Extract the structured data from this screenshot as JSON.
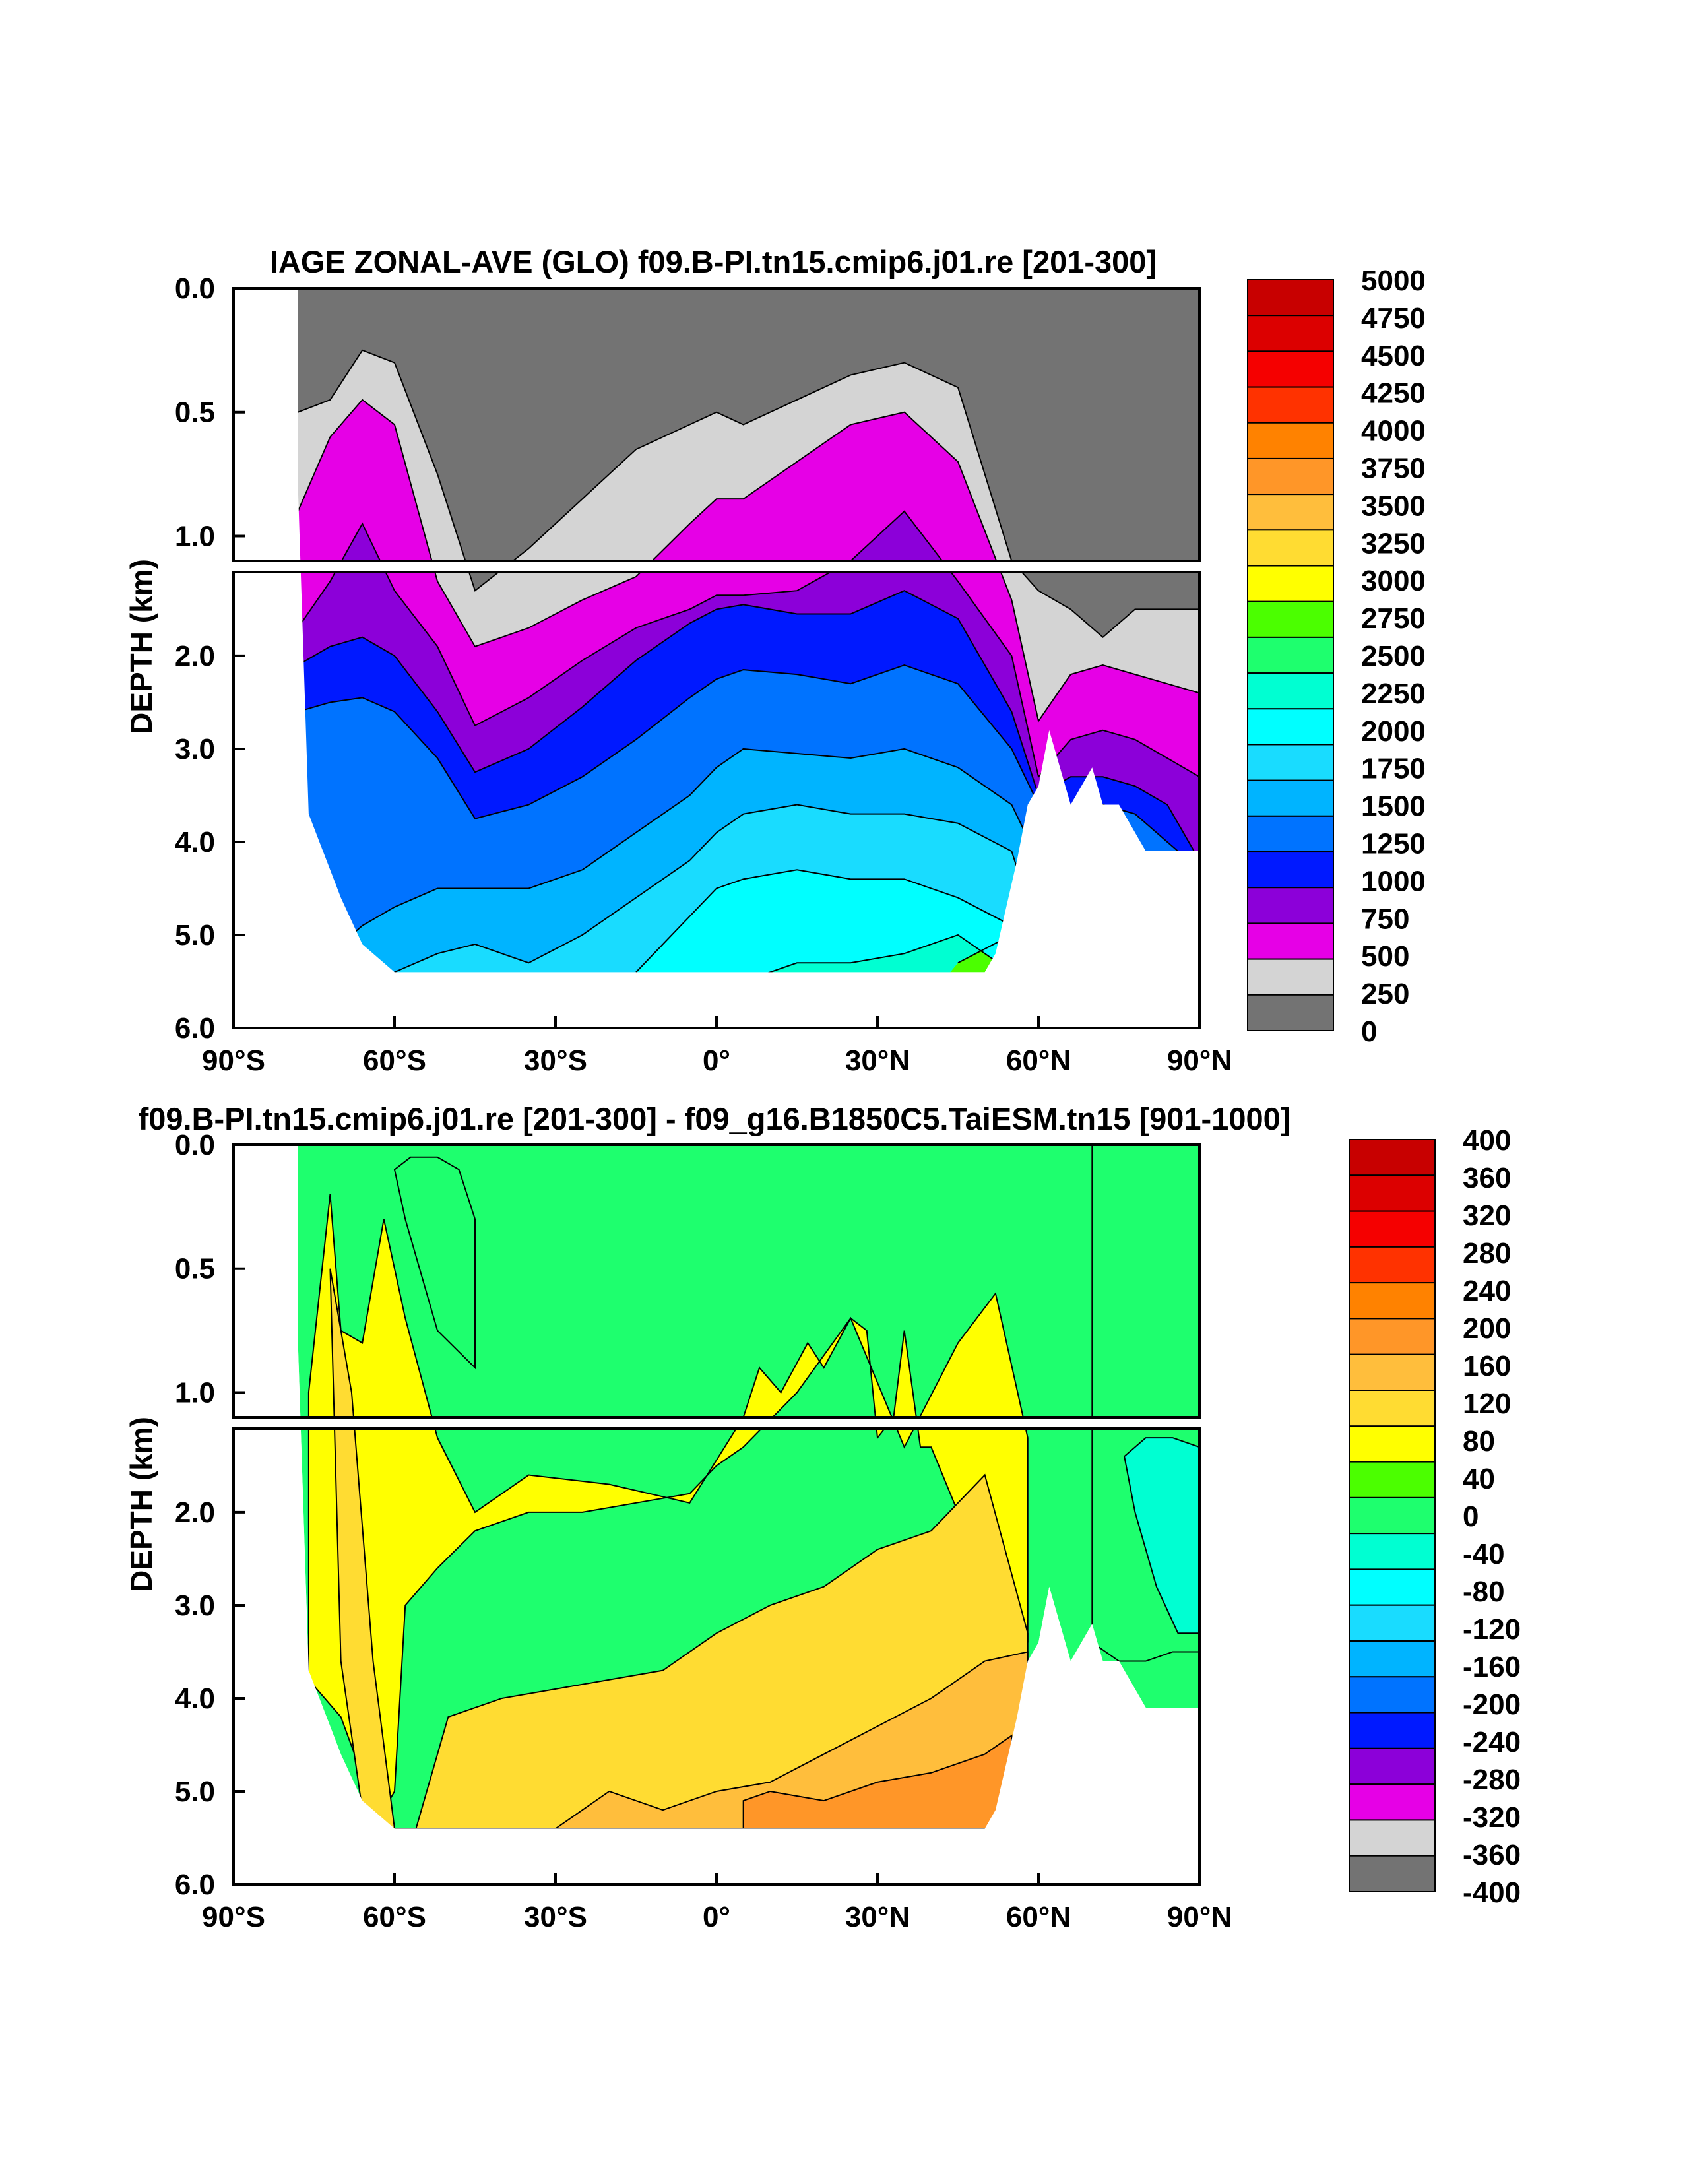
{
  "chart_data": [
    {
      "type": "heatmap",
      "subtype": "filled-contour depth-latitude section",
      "title": "IAGE ZONAL-AVE (GLO) f09.B-PI.tn15.cmip6.j01.re [201-300]",
      "xlabel": "",
      "ylabel": "DEPTH (km)",
      "x_ticks": [
        "90°S",
        "60°S",
        "30°S",
        "0°",
        "30°N",
        "60°N",
        "90°N"
      ],
      "y_ticks": [
        "0.0",
        "0.5",
        "1.0",
        "2.0",
        "3.0",
        "4.0",
        "5.0",
        "6.0"
      ],
      "xlim": [
        -90,
        90
      ],
      "ylim_upper_km": [
        0,
        1.1
      ],
      "ylim_lower_km": [
        1.1,
        6.0
      ],
      "colorbar": {
        "labels": [
          "0",
          "250",
          "500",
          "750",
          "1000",
          "1250",
          "1500",
          "1750",
          "2000",
          "2250",
          "2500",
          "2750",
          "3000",
          "3250",
          "3500",
          "3750",
          "4000",
          "4250",
          "4500",
          "4750",
          "5000"
        ],
        "colors": [
          "#737373",
          "#d4d4d4",
          "#e600e6",
          "#8c00d9",
          "#0019ff",
          "#0073ff",
          "#00b4ff",
          "#19dcff",
          "#00ffff",
          "#00ffd2",
          "#1eff6e",
          "#4bff00",
          "#ffff00",
          "#ffdc32",
          "#ffbe3c",
          "#ff9628",
          "#ff8200",
          "#ff3200",
          "#f50000",
          "#dc0000",
          "#c80000"
        ]
      },
      "bathymetry_depth_km": {
        "lat": [
          -78,
          -76,
          -74,
          -72,
          -70,
          -66,
          -60,
          -56,
          -52,
          -45,
          -30,
          -10,
          0,
          10,
          20,
          30,
          40,
          50,
          52,
          56,
          58,
          60,
          62,
          64,
          66,
          70,
          72,
          75,
          80,
          85,
          90
        ],
        "depth": [
          0.8,
          3.7,
          4.0,
          4.3,
          4.6,
          5.1,
          5.4,
          5.4,
          5.4,
          5.4,
          5.4,
          5.4,
          5.4,
          5.4,
          5.4,
          5.4,
          5.4,
          5.4,
          5.2,
          4.2,
          3.6,
          3.4,
          2.8,
          3.2,
          3.6,
          3.2,
          3.6,
          3.6,
          4.1,
          4.1,
          4.1
        ]
      },
      "contours": [
        {
          "level": 250,
          "depth": [
            0.5,
            0.45,
            0.25,
            0.3,
            0.75,
            1.3,
            1.05,
            0.85,
            0.65,
            0.55,
            0.5,
            0.55,
            0.45,
            0.35,
            0.3,
            0.4,
            1.1,
            1.3,
            1.5,
            1.8,
            1.5,
            1.5,
            1.5
          ]
        },
        {
          "level": 500,
          "depth": [
            0.9,
            0.6,
            0.45,
            0.55,
            1.2,
            1.9,
            1.7,
            1.4,
            1.15,
            0.95,
            0.85,
            0.85,
            0.7,
            0.55,
            0.5,
            0.7,
            1.4,
            2.7,
            2.2,
            2.1,
            2.2,
            2.3,
            2.4
          ]
        },
        {
          "level": 750,
          "depth": [
            1.7,
            1.2,
            0.95,
            1.3,
            1.9,
            2.75,
            2.45,
            2.05,
            1.7,
            1.5,
            1.35,
            1.35,
            1.3,
            1.1,
            0.9,
            1.2,
            2.0,
            3.3,
            2.9,
            2.8,
            2.9,
            3.1,
            3.3
          ]
        },
        {
          "level": 1000,
          "depth": [
            2.1,
            1.9,
            1.8,
            2.0,
            2.6,
            3.25,
            3.0,
            2.55,
            2.05,
            1.65,
            1.5,
            1.45,
            1.55,
            1.55,
            1.3,
            1.6,
            2.6,
            3.5,
            3.3,
            3.3,
            3.4,
            3.6,
            4.2
          ]
        },
        {
          "level": 1250,
          "depth": [
            2.6,
            2.5,
            2.45,
            2.6,
            3.1,
            3.75,
            3.6,
            3.3,
            2.9,
            2.45,
            2.25,
            2.15,
            2.2,
            2.3,
            2.1,
            2.3,
            3.0,
            3.6,
            3.6,
            3.6,
            3.7,
            4.0,
            4.3
          ]
        },
        {
          "level": 1500,
          "depth": [
            5.3,
            5.2,
            4.9,
            4.7,
            4.5,
            4.5,
            4.5,
            4.3,
            3.9,
            3.5,
            3.2,
            3.0,
            3.05,
            3.1,
            3.0,
            3.2,
            3.6,
            4.2,
            4.5,
            4.5,
            4.5,
            4.5,
            4.5
          ]
        },
        {
          "level": 1750,
          "depth": [
            6.0,
            6.0,
            5.6,
            5.4,
            5.2,
            5.1,
            5.3,
            5.0,
            4.6,
            4.2,
            3.9,
            3.7,
            3.6,
            3.7,
            3.7,
            3.8,
            4.1,
            5.0,
            6.0,
            6.0,
            6.0,
            6.0,
            6.0
          ]
        },
        {
          "level": 2000,
          "depth": [
            6.0,
            6.0,
            6.0,
            6.0,
            6.0,
            6.0,
            6.0,
            6.0,
            5.4,
            4.8,
            4.5,
            4.4,
            4.3,
            4.4,
            4.4,
            4.6,
            4.9,
            6.0,
            6.0,
            6.0,
            6.0,
            6.0,
            6.0
          ]
        },
        {
          "level": 2250,
          "depth": [
            6.0,
            6.0,
            6.0,
            6.0,
            6.0,
            6.0,
            6.0,
            6.0,
            6.0,
            6.0,
            5.6,
            5.5,
            5.3,
            5.3,
            5.2,
            5.0,
            5.4,
            6.0,
            6.0,
            6.0,
            6.0,
            6.0,
            6.0
          ]
        },
        {
          "level": 2500,
          "depth": [
            6.0,
            6.0,
            6.0,
            6.0,
            6.0,
            6.0,
            6.0,
            6.0,
            6.0,
            6.0,
            6.0,
            6.0,
            6.0,
            6.0,
            6.0,
            5.3,
            5.0,
            6.0,
            6.0,
            6.0,
            6.0,
            6.0,
            6.0
          ]
        }
      ],
      "contour_lat": [
        -78,
        -72,
        -66,
        -60,
        -52,
        -45,
        -35,
        -25,
        -15,
        -5,
        0,
        5,
        15,
        25,
        35,
        45,
        55,
        60,
        66,
        72,
        78,
        84,
        90
      ]
    },
    {
      "type": "heatmap",
      "subtype": "filled-contour depth-latitude section (difference)",
      "title": "f09.B-PI.tn15.cmip6.j01.re [201-300] - f09_g16.B1850C5.TaiESM.tn15 [901-1000]",
      "xlabel": "",
      "ylabel": "DEPTH (km)",
      "x_ticks": [
        "90°S",
        "60°S",
        "30°S",
        "0°",
        "30°N",
        "60°N",
        "90°N"
      ],
      "y_ticks": [
        "0.0",
        "0.5",
        "1.0",
        "2.0",
        "3.0",
        "4.0",
        "5.0",
        "6.0"
      ],
      "xlim": [
        -90,
        90
      ],
      "ylim_upper_km": [
        0,
        1.1
      ],
      "ylim_lower_km": [
        1.1,
        6.0
      ],
      "colorbar": {
        "labels": [
          "400",
          "360",
          "320",
          "280",
          "240",
          "200",
          "160",
          "120",
          "80",
          "40",
          "0",
          "-40",
          "-80",
          "-120",
          "-160",
          "-200",
          "-240",
          "-280",
          "-320",
          "-360",
          "-400"
        ],
        "colors": [
          "#c80000",
          "#dc0000",
          "#f50000",
          "#ff3200",
          "#ff8200",
          "#ff9628",
          "#ffbe3c",
          "#ffdc32",
          "#ffff00",
          "#4bff00",
          "#1eff6e",
          "#00ffd2",
          "#00ffff",
          "#19dcff",
          "#00b4ff",
          "#0073ff",
          "#0019ff",
          "#8c00d9",
          "#e600e6",
          "#d4d4d4",
          "#737373"
        ]
      },
      "bathymetry_depth_km": {
        "lat": [
          -78,
          -76,
          -74,
          -72,
          -70,
          -66,
          -60,
          -56,
          -52,
          -45,
          -30,
          -10,
          0,
          10,
          20,
          30,
          40,
          50,
          52,
          56,
          58,
          60,
          62,
          64,
          66,
          70,
          72,
          75,
          80,
          85,
          90
        ],
        "depth": [
          0.8,
          3.7,
          4.0,
          4.3,
          4.6,
          5.1,
          5.4,
          5.4,
          5.4,
          5.4,
          5.4,
          5.4,
          5.4,
          5.4,
          5.4,
          5.4,
          5.4,
          5.4,
          5.2,
          4.2,
          3.6,
          3.4,
          2.8,
          3.2,
          3.6,
          3.2,
          3.6,
          3.6,
          4.1,
          4.1,
          4.1
        ]
      },
      "regions": [
        {
          "value_range": [
            -40,
            0
          ],
          "lat": [
            -60,
            -57,
            -52,
            -48,
            -45,
            -45,
            -52,
            -58,
            -60
          ],
          "depth": [
            0.1,
            0.05,
            0.05,
            0.1,
            0.3,
            0.9,
            0.75,
            0.3,
            0.1
          ]
        },
        {
          "value_range": [
            -40,
            0
          ],
          "lat": [
            70,
            75,
            80,
            85,
            90,
            90,
            85,
            80,
            75,
            70,
            70
          ],
          "depth": [
            0.0,
            0.0,
            0.0,
            0.0,
            0.0,
            3.5,
            3.5,
            3.6,
            3.6,
            3.4,
            0.0
          ]
        },
        {
          "value_range": [
            -80,
            -40
          ],
          "lat": [
            76,
            80,
            85,
            90,
            90,
            86,
            82,
            78,
            76
          ],
          "depth": [
            1.4,
            1.2,
            1.2,
            1.3,
            3.3,
            3.3,
            2.8,
            2.0,
            1.4
          ]
        },
        {
          "value_range": [
            40,
            80
          ],
          "lat": [
            -76,
            -70,
            -63,
            -60,
            -58,
            -52,
            -45,
            -35,
            -25,
            -15,
            -5,
            0,
            5,
            15,
            25,
            35,
            45,
            52,
            58,
            58,
            52,
            45,
            40,
            38,
            35,
            33,
            30,
            28,
            25,
            20,
            17,
            12,
            8,
            5,
            -5,
            -20,
            -35,
            -45,
            -52,
            -58,
            -62,
            -66,
            -70,
            -72,
            -76
          ],
          "depth": [
            3.8,
            4.2,
            5.3,
            5.0,
            3.0,
            2.6,
            2.2,
            2.0,
            2.0,
            1.9,
            1.8,
            1.5,
            1.3,
            1.0,
            0.7,
            1.3,
            0.8,
            0.6,
            1.2,
            3.4,
            2.2,
            2.0,
            1.3,
            1.3,
            0.75,
            1.1,
            1.2,
            0.75,
            0.7,
            0.9,
            0.8,
            1.0,
            0.9,
            1.1,
            1.9,
            1.7,
            1.6,
            2.0,
            1.2,
            0.7,
            0.3,
            0.8,
            0.75,
            0.2,
            1.0
          ]
        },
        {
          "value_range": [
            80,
            120
          ],
          "lat": [
            -72,
            -68,
            -64,
            -60,
            -56,
            -50,
            -40,
            -30,
            -20,
            -10,
            0,
            10,
            20,
            30,
            40,
            50,
            58,
            58,
            50,
            40,
            30,
            20,
            10,
            0,
            -10,
            -20,
            -30,
            -40,
            -50,
            -58,
            -62,
            -66,
            -70
          ],
          "depth": [
            0.5,
            1.0,
            3.6,
            5.4,
            5.4,
            4.2,
            4.0,
            3.9,
            3.8,
            3.7,
            3.3,
            3.0,
            2.8,
            2.4,
            2.2,
            1.6,
            3.3,
            4.6,
            4.8,
            5.0,
            5.2,
            5.4,
            5.4,
            5.4,
            5.4,
            5.4,
            5.4,
            5.4,
            5.4,
            5.4,
            5.4,
            5.2,
            3.6
          ]
        },
        {
          "value_range": [
            120,
            160
          ],
          "lat": [
            -30,
            -20,
            -10,
            0,
            10,
            20,
            30,
            40,
            50,
            58,
            58,
            50,
            40,
            30,
            20,
            10,
            0,
            -10,
            -20,
            -30
          ],
          "depth": [
            5.4,
            5.0,
            5.2,
            5.0,
            4.9,
            4.6,
            4.3,
            4.0,
            3.6,
            3.5,
            5.4,
            5.4,
            5.4,
            5.4,
            5.4,
            5.4,
            5.4,
            5.4,
            5.4,
            5.4
          ]
        },
        {
          "value_range": [
            160,
            200
          ],
          "lat": [
            5,
            10,
            20,
            30,
            40,
            50,
            55,
            55,
            50,
            40,
            30,
            20,
            10,
            5
          ],
          "depth": [
            5.1,
            5.0,
            5.1,
            4.9,
            4.8,
            4.6,
            4.4,
            5.4,
            5.4,
            5.4,
            5.4,
            5.4,
            5.4,
            5.4
          ]
        }
      ]
    }
  ]
}
